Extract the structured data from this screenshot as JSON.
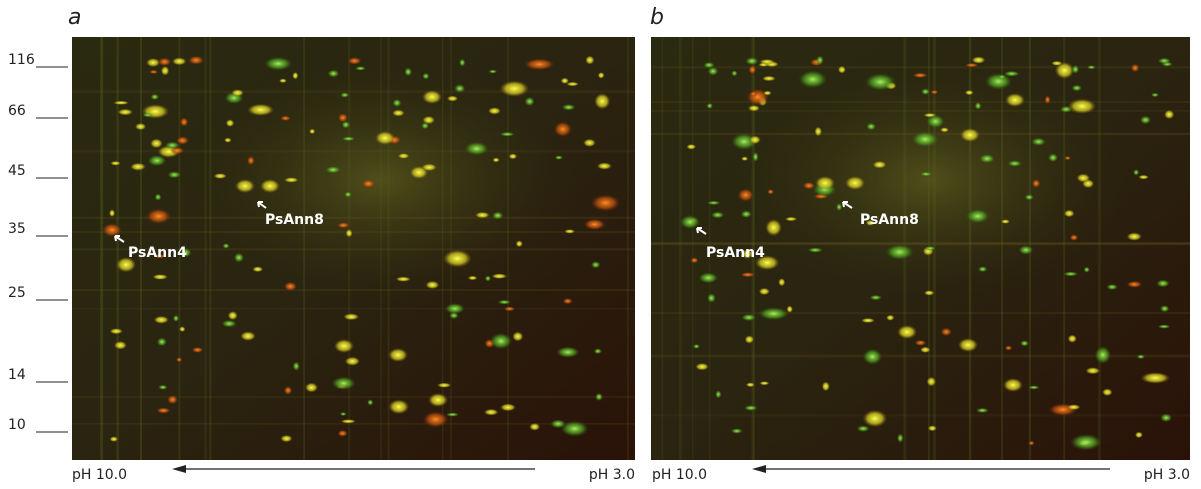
{
  "panels": [
    {
      "label": "a",
      "annotations": [
        {
          "text": "PsAnn8"
        },
        {
          "text": "PsAnn4"
        }
      ],
      "ph_left": "pH 10.0",
      "ph_right": "pH 3.0"
    },
    {
      "label": "b",
      "annotations": [
        {
          "text": "PsAnn8"
        },
        {
          "text": "PsAnn4"
        }
      ],
      "ph_left": "pH 10.0",
      "ph_right": "pH 3.0"
    }
  ],
  "mw_markers": [
    "116",
    "66",
    "45",
    "35",
    "25",
    "14",
    "10"
  ]
}
